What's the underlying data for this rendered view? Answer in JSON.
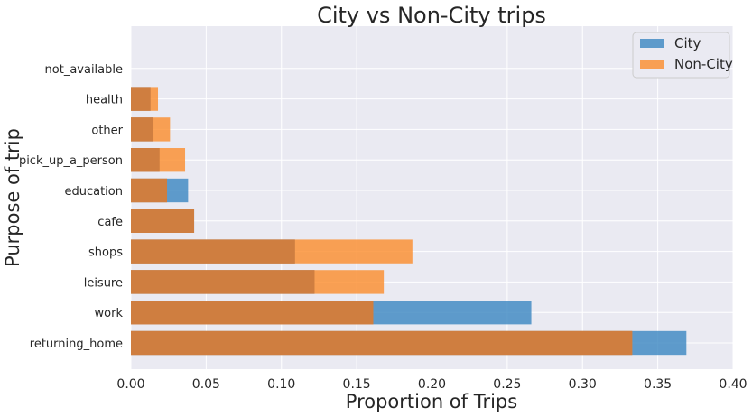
{
  "chart_data": {
    "type": "bar",
    "orientation": "horizontal",
    "title": "City vs Non-City trips",
    "xlabel": "Proportion of Trips",
    "ylabel": "Purpose of trip",
    "xlim": [
      0,
      0.4
    ],
    "xticks": [
      "0.00",
      "0.05",
      "0.10",
      "0.15",
      "0.20",
      "0.25",
      "0.30",
      "0.35",
      "0.40"
    ],
    "categories": [
      "returning_home",
      "work",
      "leisure",
      "shops",
      "cafe",
      "education",
      "pick_up_a_person",
      "other",
      "health",
      "not_available"
    ],
    "series": [
      {
        "name": "City",
        "color": "#3a86c0",
        "values": [
          0.369,
          0.266,
          0.122,
          0.109,
          0.042,
          0.038,
          0.019,
          0.015,
          0.013,
          0.0
        ]
      },
      {
        "name": "Non-City",
        "color": "#fb8c2b",
        "values": [
          0.333,
          0.161,
          0.168,
          0.187,
          0.042,
          0.024,
          0.036,
          0.026,
          0.018,
          0.0
        ]
      }
    ],
    "overlap_color": "#cf7e40",
    "grid": true,
    "legend_position": "top-right"
  }
}
